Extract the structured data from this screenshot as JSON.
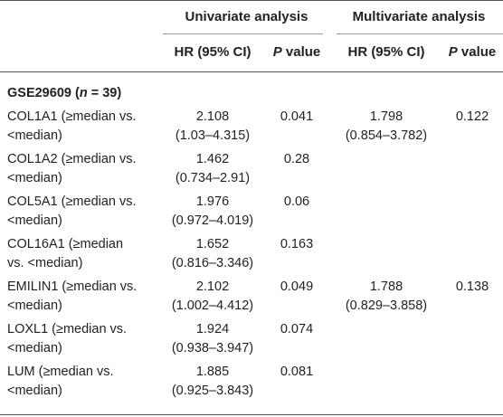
{
  "header": {
    "group1": "Univariate analysis",
    "group2": "Multivariate analysis",
    "col_hr": "HR (95% CI)",
    "col_p_italic": "P",
    "col_p_rest": " value"
  },
  "section": {
    "label": "GSE29609 (",
    "n_italic": "n",
    "rest": " = 39)"
  },
  "rows": [
    {
      "gene_line1": "COL1A1 (≥median vs.",
      "gene_line2": "<median)",
      "uni_hr": "2.108",
      "uni_ci": "(1.03–4.315)",
      "uni_p": "0.041",
      "multi_hr": "1.798",
      "multi_ci": "(0.854–3.782)",
      "multi_p": "0.122"
    },
    {
      "gene_line1": "COL1A2 (≥median vs.",
      "gene_line2": "<median)",
      "uni_hr": "1.462",
      "uni_ci": "(0.734–2.91)",
      "uni_p": "0.28",
      "multi_hr": "",
      "multi_ci": "",
      "multi_p": ""
    },
    {
      "gene_line1": "COL5A1 (≥median vs.",
      "gene_line2": "<median)",
      "uni_hr": "1.976",
      "uni_ci": "(0.972–4.019)",
      "uni_p": "0.06",
      "multi_hr": "",
      "multi_ci": "",
      "multi_p": ""
    },
    {
      "gene_line1": "COL16A1 (≥median",
      "gene_line2": "vs. <median)",
      "uni_hr": "1.652",
      "uni_ci": "(0.816–3.346)",
      "uni_p": "0.163",
      "multi_hr": "",
      "multi_ci": "",
      "multi_p": ""
    },
    {
      "gene_line1": "EMILIN1 (≥median vs.",
      "gene_line2": "<median)",
      "uni_hr": "2.102",
      "uni_ci": "(1.002–4.412)",
      "uni_p": "0.049",
      "multi_hr": "1.788",
      "multi_ci": "(0.829–3.858)",
      "multi_p": "0.138"
    },
    {
      "gene_line1": "LOXL1 (≥median vs.",
      "gene_line2": "<median)",
      "uni_hr": "1.924",
      "uni_ci": "(0.938–3.947)",
      "uni_p": "0.074",
      "multi_hr": "",
      "multi_ci": "",
      "multi_p": ""
    },
    {
      "gene_line1": "LUM (≥median vs.",
      "gene_line2": "<median)",
      "uni_hr": "1.885",
      "uni_ci": "(0.925–3.843)",
      "uni_p": "0.081",
      "multi_hr": "",
      "multi_ci": "",
      "multi_p": ""
    }
  ]
}
